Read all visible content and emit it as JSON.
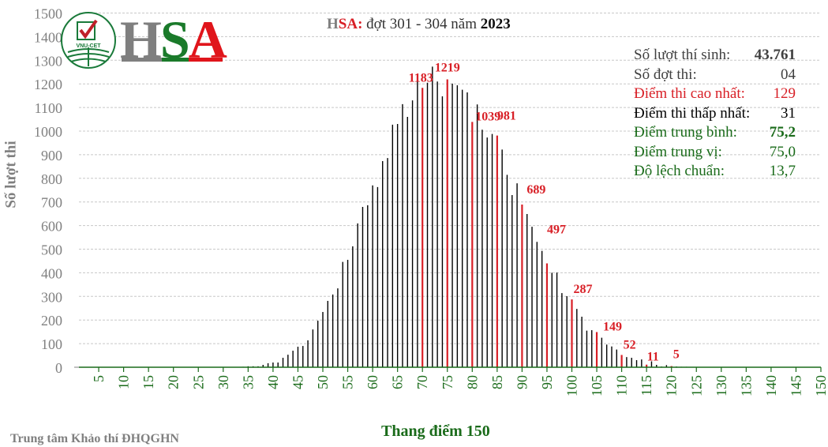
{
  "title": {
    "brand_h": "H",
    "brand_sa": "SA",
    "colon": ":",
    "rounds": " đợt 301 - 304 năm ",
    "year": "2023"
  },
  "logo": {
    "letters": [
      "H",
      "S",
      "A"
    ],
    "emblem_text": "VNU-CET"
  },
  "stats": [
    {
      "label": "Số lượt thí sinh:",
      "value": "43.761",
      "color": "#404040",
      "bold_value": true
    },
    {
      "label": "Số đợt thi:",
      "value": "04",
      "color": "#404040",
      "bold_value": false
    },
    {
      "label": "Điểm thi cao nhất:",
      "value": "129",
      "color": "#d81f26",
      "bold_value": false
    },
    {
      "label": "Điểm thi thấp nhất:",
      "value": "31",
      "color": "#000000",
      "bold_value": false
    },
    {
      "label": "Điểm trung bình:",
      "value": "75,2",
      "color": "#1a6b1a",
      "bold_value": true
    },
    {
      "label": "Điểm trung vị:",
      "value": "75,0",
      "color": "#1a6b1a",
      "bold_value": false
    },
    {
      "label": "Độ lệch chuẩn:",
      "value": "13,7",
      "color": "#1a6b1a",
      "bold_value": false
    }
  ],
  "footer": "Trung tâm Khảo thí ĐHQGHN",
  "chart_data": {
    "type": "bar",
    "title": "HSA: đợt 301 - 304 năm 2023",
    "xlabel": "Thang điểm 150",
    "ylabel": "Số lượt thi",
    "xlim": [
      0,
      150
    ],
    "ylim": [
      0,
      1500
    ],
    "yticks": [
      0,
      100,
      200,
      300,
      400,
      500,
      600,
      700,
      800,
      900,
      1000,
      1100,
      1200,
      1300,
      1400,
      1500
    ],
    "xticks": [
      5,
      10,
      15,
      20,
      25,
      30,
      35,
      40,
      45,
      50,
      55,
      60,
      65,
      70,
      75,
      80,
      85,
      90,
      95,
      100,
      105,
      110,
      115,
      120,
      125,
      130,
      135,
      140,
      145,
      150
    ],
    "grid": "horizontal dashed",
    "colors": {
      "bar": "#000000",
      "highlight": "#d81f26",
      "axis": "#1a6b1a",
      "grid": "#c8c8c8"
    },
    "highlighted_scores": [
      70,
      75,
      80,
      85,
      90,
      95,
      100,
      105,
      110,
      115,
      120
    ],
    "data_labels": [
      {
        "x": 70,
        "text": "1183"
      },
      {
        "x": 75,
        "text": "1219"
      },
      {
        "x": 80,
        "text": "1039"
      },
      {
        "x": 85,
        "text": "981"
      },
      {
        "x": 90,
        "text": "689"
      },
      {
        "x": 95,
        "text": "497"
      },
      {
        "x": 100,
        "text": "287"
      },
      {
        "x": 105,
        "text": "149"
      },
      {
        "x": 110,
        "text": "52"
      },
      {
        "x": 115,
        "text": "11"
      },
      {
        "x": 120,
        "text": "5"
      }
    ],
    "x": [
      31,
      32,
      33,
      34,
      35,
      36,
      37,
      38,
      39,
      40,
      41,
      42,
      43,
      44,
      45,
      46,
      47,
      48,
      49,
      50,
      51,
      52,
      53,
      54,
      55,
      56,
      57,
      58,
      59,
      60,
      61,
      62,
      63,
      64,
      65,
      66,
      67,
      68,
      69,
      70,
      71,
      72,
      73,
      74,
      75,
      76,
      77,
      78,
      79,
      80,
      81,
      82,
      83,
      84,
      85,
      86,
      87,
      88,
      89,
      90,
      91,
      92,
      93,
      94,
      95,
      96,
      97,
      98,
      99,
      100,
      101,
      102,
      103,
      104,
      105,
      106,
      107,
      108,
      109,
      110,
      111,
      112,
      113,
      114,
      115,
      116,
      117,
      118,
      119,
      120,
      121,
      122,
      123,
      124,
      125,
      126,
      127,
      128,
      129
    ],
    "values": [
      1,
      1,
      1,
      2,
      4,
      4,
      4,
      10,
      17,
      20,
      20,
      40,
      53,
      70,
      87,
      90,
      114,
      160,
      197,
      234,
      281,
      308,
      334,
      446,
      455,
      512,
      609,
      679,
      686,
      770,
      763,
      873,
      886,
      1027,
      1030,
      1114,
      1060,
      1130,
      1221,
      1183,
      1205,
      1273,
      1210,
      1147,
      1219,
      1201,
      1194,
      1175,
      1164,
      1039,
      1113,
      1006,
      973,
      988,
      981,
      922,
      815,
      729,
      779,
      689,
      649,
      595,
      531,
      493,
      440,
      400,
      401,
      314,
      301,
      287,
      247,
      214,
      155,
      157,
      149,
      125,
      96,
      88,
      75,
      52,
      43,
      40,
      30,
      33,
      11,
      25,
      10,
      3,
      9,
      5,
      3,
      2,
      2,
      1,
      1,
      1,
      1,
      1,
      1
    ]
  }
}
